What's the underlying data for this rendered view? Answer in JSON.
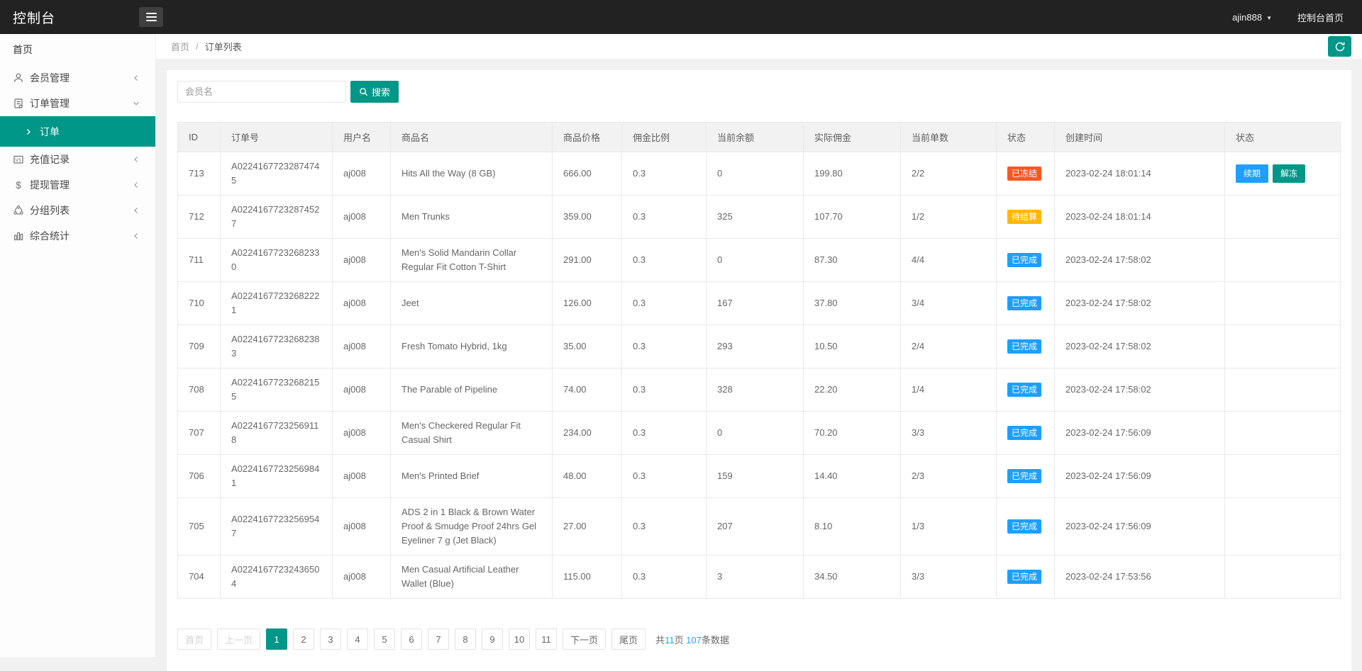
{
  "header": {
    "title": "控制台",
    "user": "ajin888",
    "caret": "▼",
    "portal": "控制台首页"
  },
  "sidebar": {
    "home": "首页",
    "items": [
      {
        "key": "members",
        "label": "会员管理",
        "icon": "user-icon",
        "expanded": false
      },
      {
        "key": "orders",
        "label": "订单管理",
        "icon": "order-icon",
        "expanded": true,
        "submenu": [
          {
            "key": "order-list",
            "label": "订单",
            "active": true
          }
        ]
      },
      {
        "key": "recharge",
        "label": "充值记录",
        "icon": "recharge-icon",
        "expanded": false
      },
      {
        "key": "withdraw",
        "label": "提现管理",
        "icon": "withdraw-icon",
        "expanded": false
      },
      {
        "key": "groups",
        "label": "分组列表",
        "icon": "group-icon",
        "expanded": false
      },
      {
        "key": "stats",
        "label": "综合统计",
        "icon": "stats-icon",
        "expanded": false
      }
    ]
  },
  "breadcrumb": {
    "home": "首页",
    "separator": "/",
    "current": "订单列表"
  },
  "search": {
    "placeholder": "会员名",
    "button_label": "搜索"
  },
  "colors": {
    "accent": "#009688",
    "blue": "#1E9FFF",
    "badge_frozen": "#FF5722",
    "badge_pending": "#FFB800",
    "badge_done": "#1E9FFF"
  },
  "table": {
    "columns": [
      "ID",
      "订单号",
      "用户名",
      "商品名",
      "商品价格",
      "佣金比例",
      "当前余额",
      "实际佣金",
      "当前单数",
      "状态",
      "创建时间",
      "状态"
    ],
    "rows": [
      {
        "id": "713",
        "order_no": "A02241677232874745",
        "username": "aj008",
        "product": "Hits All the Way (8 GB)",
        "price": "666.00",
        "ratio": "0.3",
        "balance": "0",
        "commission": "199.80",
        "count": "2/2",
        "status_label": "已冻结",
        "status_color": "#FF5722",
        "created": "2023-02-24 18:01:14",
        "actions": [
          {
            "name": "renew-button",
            "label": "续期",
            "color": "#1E9FFF"
          },
          {
            "name": "unfreeze-button",
            "label": "解冻",
            "color": "#009688"
          }
        ]
      },
      {
        "id": "712",
        "order_no": "A02241677232874527",
        "username": "aj008",
        "product": "Men Trunks",
        "price": "359.00",
        "ratio": "0.3",
        "balance": "325",
        "commission": "107.70",
        "count": "1/2",
        "status_label": "待结算",
        "status_color": "#FFB800",
        "created": "2023-02-24 18:01:14",
        "actions": []
      },
      {
        "id": "711",
        "order_no": "A02241677232682330",
        "username": "aj008",
        "product": "Men's Solid Mandarin Collar Regular Fit Cotton T-Shirt",
        "price": "291.00",
        "ratio": "0.3",
        "balance": "0",
        "commission": "87.30",
        "count": "4/4",
        "status_label": "已完成",
        "status_color": "#1E9FFF",
        "created": "2023-02-24 17:58:02",
        "actions": []
      },
      {
        "id": "710",
        "order_no": "A02241677232682221",
        "username": "aj008",
        "product": "Jeet",
        "price": "126.00",
        "ratio": "0.3",
        "balance": "167",
        "commission": "37.80",
        "count": "3/4",
        "status_label": "已完成",
        "status_color": "#1E9FFF",
        "created": "2023-02-24 17:58:02",
        "actions": []
      },
      {
        "id": "709",
        "order_no": "A02241677232682383",
        "username": "aj008",
        "product": "Fresh Tomato Hybrid, 1kg",
        "price": "35.00",
        "ratio": "0.3",
        "balance": "293",
        "commission": "10.50",
        "count": "2/4",
        "status_label": "已完成",
        "status_color": "#1E9FFF",
        "created": "2023-02-24 17:58:02",
        "actions": []
      },
      {
        "id": "708",
        "order_no": "A02241677232682155",
        "username": "aj008",
        "product": "The Parable of Pipeline",
        "price": "74.00",
        "ratio": "0.3",
        "balance": "328",
        "commission": "22.20",
        "count": "1/4",
        "status_label": "已完成",
        "status_color": "#1E9FFF",
        "created": "2023-02-24 17:58:02",
        "actions": []
      },
      {
        "id": "707",
        "order_no": "A02241677232569118",
        "username": "aj008",
        "product": "Men's Checkered Regular Fit Casual Shirt",
        "price": "234.00",
        "ratio": "0.3",
        "balance": "0",
        "commission": "70.20",
        "count": "3/3",
        "status_label": "已完成",
        "status_color": "#1E9FFF",
        "created": "2023-02-24 17:56:09",
        "actions": []
      },
      {
        "id": "706",
        "order_no": "A02241677232569841",
        "username": "aj008",
        "product": "Men's Printed Brief",
        "price": "48.00",
        "ratio": "0.3",
        "balance": "159",
        "commission": "14.40",
        "count": "2/3",
        "status_label": "已完成",
        "status_color": "#1E9FFF",
        "created": "2023-02-24 17:56:09",
        "actions": []
      },
      {
        "id": "705",
        "order_no": "A02241677232569547",
        "username": "aj008",
        "product": "ADS 2 in 1 Black & Brown Water Proof & Smudge Proof 24hrs Gel Eyeliner 7 g (Jet Black)",
        "price": "27.00",
        "ratio": "0.3",
        "balance": "207",
        "commission": "8.10",
        "count": "1/3",
        "status_label": "已完成",
        "status_color": "#1E9FFF",
        "created": "2023-02-24 17:56:09",
        "actions": []
      },
      {
        "id": "704",
        "order_no": "A02241677232436504",
        "username": "aj008",
        "product": "Men Casual Artificial Leather Wallet (Blue)",
        "price": "115.00",
        "ratio": "0.3",
        "balance": "3",
        "commission": "34.50",
        "count": "3/3",
        "status_label": "已完成",
        "status_color": "#1E9FFF",
        "created": "2023-02-24 17:53:56",
        "actions": []
      }
    ]
  },
  "pagination": {
    "first_label": "首页",
    "prev_label": "上一页",
    "pages": [
      "1",
      "2",
      "3",
      "4",
      "5",
      "6",
      "7",
      "8",
      "9",
      "10",
      "11"
    ],
    "active_page": "1",
    "next_label": "下一页",
    "last_label": "尾页",
    "summary": [
      {
        "text": "共"
      },
      {
        "text": "11",
        "hl": true
      },
      {
        "text": "页 "
      },
      {
        "text": "107",
        "hl": true
      },
      {
        "text": "条数据"
      }
    ]
  }
}
